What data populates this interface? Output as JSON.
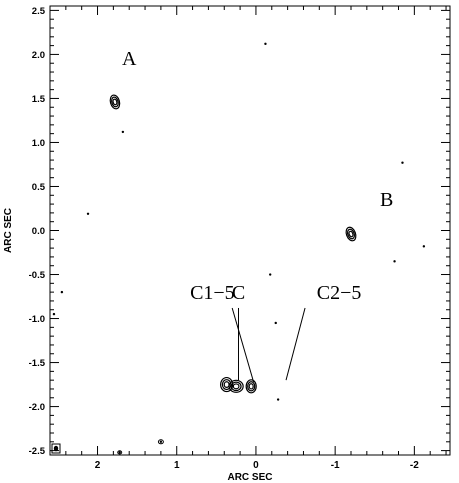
{
  "chart_data": {
    "type": "scatter",
    "title": "",
    "xlabel": "ARC SEC",
    "ylabel": "ARC SEC",
    "xlim": [
      2.6,
      -2.45
    ],
    "ylim": [
      -2.55,
      2.55
    ],
    "x_ticks": [
      {
        "value": 2,
        "label": "2"
      },
      {
        "value": 1,
        "label": "1"
      },
      {
        "value": 0,
        "label": "0"
      },
      {
        "value": -1,
        "label": "-1"
      },
      {
        "value": -2,
        "label": "-2"
      }
    ],
    "y_ticks": [
      {
        "value": 2.5,
        "label": "2.5"
      },
      {
        "value": 2.0,
        "label": "2.0"
      },
      {
        "value": 1.5,
        "label": "1.5"
      },
      {
        "value": 1.0,
        "label": "1.0"
      },
      {
        "value": 0.5,
        "label": "0.5"
      },
      {
        "value": 0.0,
        "label": "0.0"
      },
      {
        "value": -0.5,
        "label": "-0.5"
      },
      {
        "value": -1.0,
        "label": "-1.0"
      },
      {
        "value": -1.5,
        "label": "-1.5"
      },
      {
        "value": -2.0,
        "label": "-2.0"
      },
      {
        "value": -2.5,
        "label": "-2.5"
      }
    ],
    "components": [
      {
        "label": "A",
        "x": 1.78,
        "y": 1.46,
        "label_x": 1.6,
        "label_y": 1.88
      },
      {
        "label": "B",
        "x": -1.2,
        "y": -0.04,
        "label_x": -1.65,
        "label_y": 0.28
      },
      {
        "label": "C",
        "x": 0.25,
        "y": -1.77,
        "label_x": 0.22,
        "label_y": -0.78
      },
      {
        "label": "C1−5",
        "x": 0.06,
        "y": -1.77,
        "label_x": 0.55,
        "label_y": -0.78
      },
      {
        "label": "C2−5",
        "x": 0.37,
        "y": -1.75,
        "label_x": -1.05,
        "label_y": -0.78
      }
    ],
    "noise_points": [
      {
        "x": -0.12,
        "y": 2.12
      },
      {
        "x": 1.68,
        "y": 1.12
      },
      {
        "x": -1.85,
        "y": 0.77
      },
      {
        "x": 2.12,
        "y": 0.19
      },
      {
        "x": -2.12,
        "y": -0.18
      },
      {
        "x": -1.75,
        "y": -0.35
      },
      {
        "x": -0.18,
        "y": -0.5
      },
      {
        "x": 2.45,
        "y": -0.7
      },
      {
        "x": 2.55,
        "y": -0.95
      },
      {
        "x": -0.25,
        "y": -1.05
      },
      {
        "x": -0.28,
        "y": -1.92
      },
      {
        "x": 1.2,
        "y": -2.4
      },
      {
        "x": 1.72,
        "y": -2.52
      }
    ],
    "grid": false,
    "legend": "none"
  }
}
